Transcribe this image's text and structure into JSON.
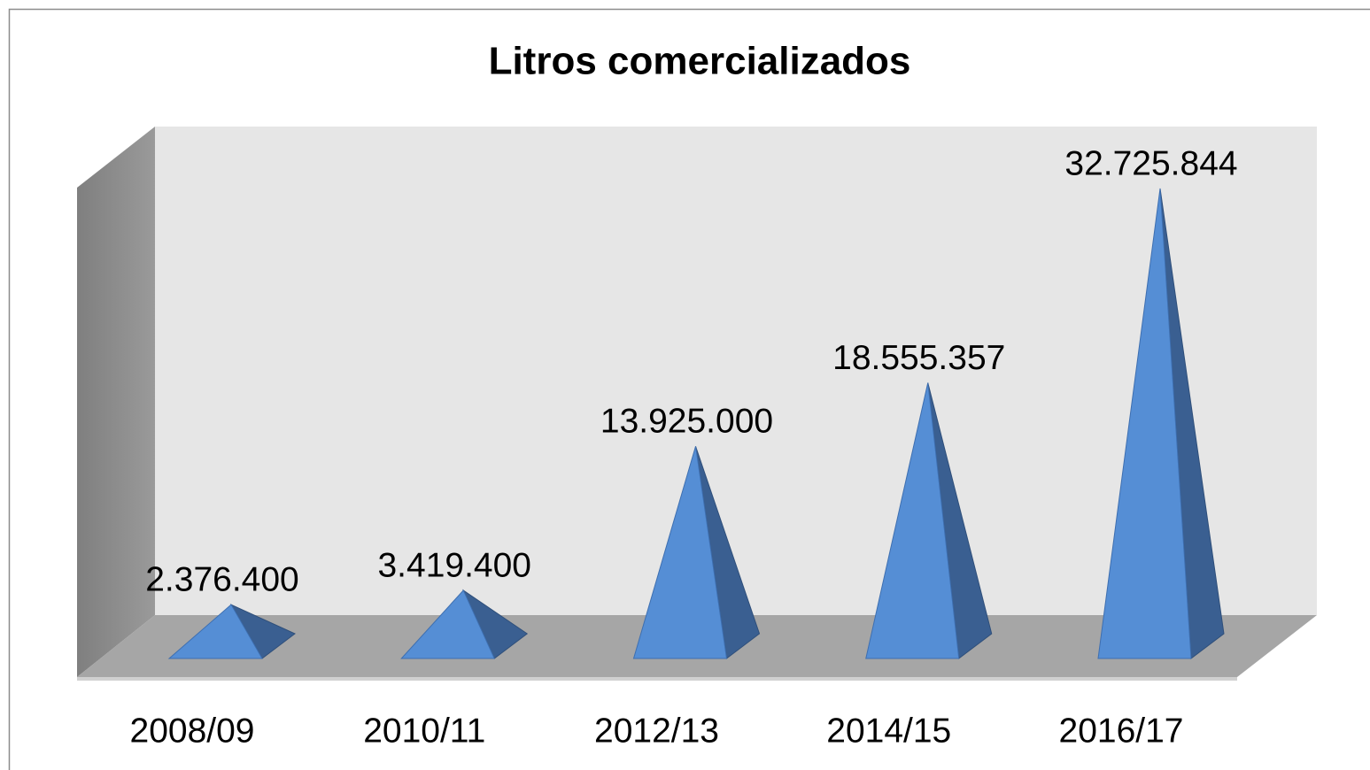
{
  "chart_data": {
    "type": "pyramid",
    "title": "Litros comercializados",
    "categories": [
      "2008/09",
      "2010/11",
      "2012/13",
      "2014/15",
      "2016/17"
    ],
    "values": [
      2376400,
      3419400,
      13925000,
      18555357,
      32725844
    ],
    "value_labels": [
      "2.376.400",
      "3.419.400",
      "13.925.000",
      "18.555.357",
      "32.725.844"
    ],
    "color": "#558ed5"
  }
}
